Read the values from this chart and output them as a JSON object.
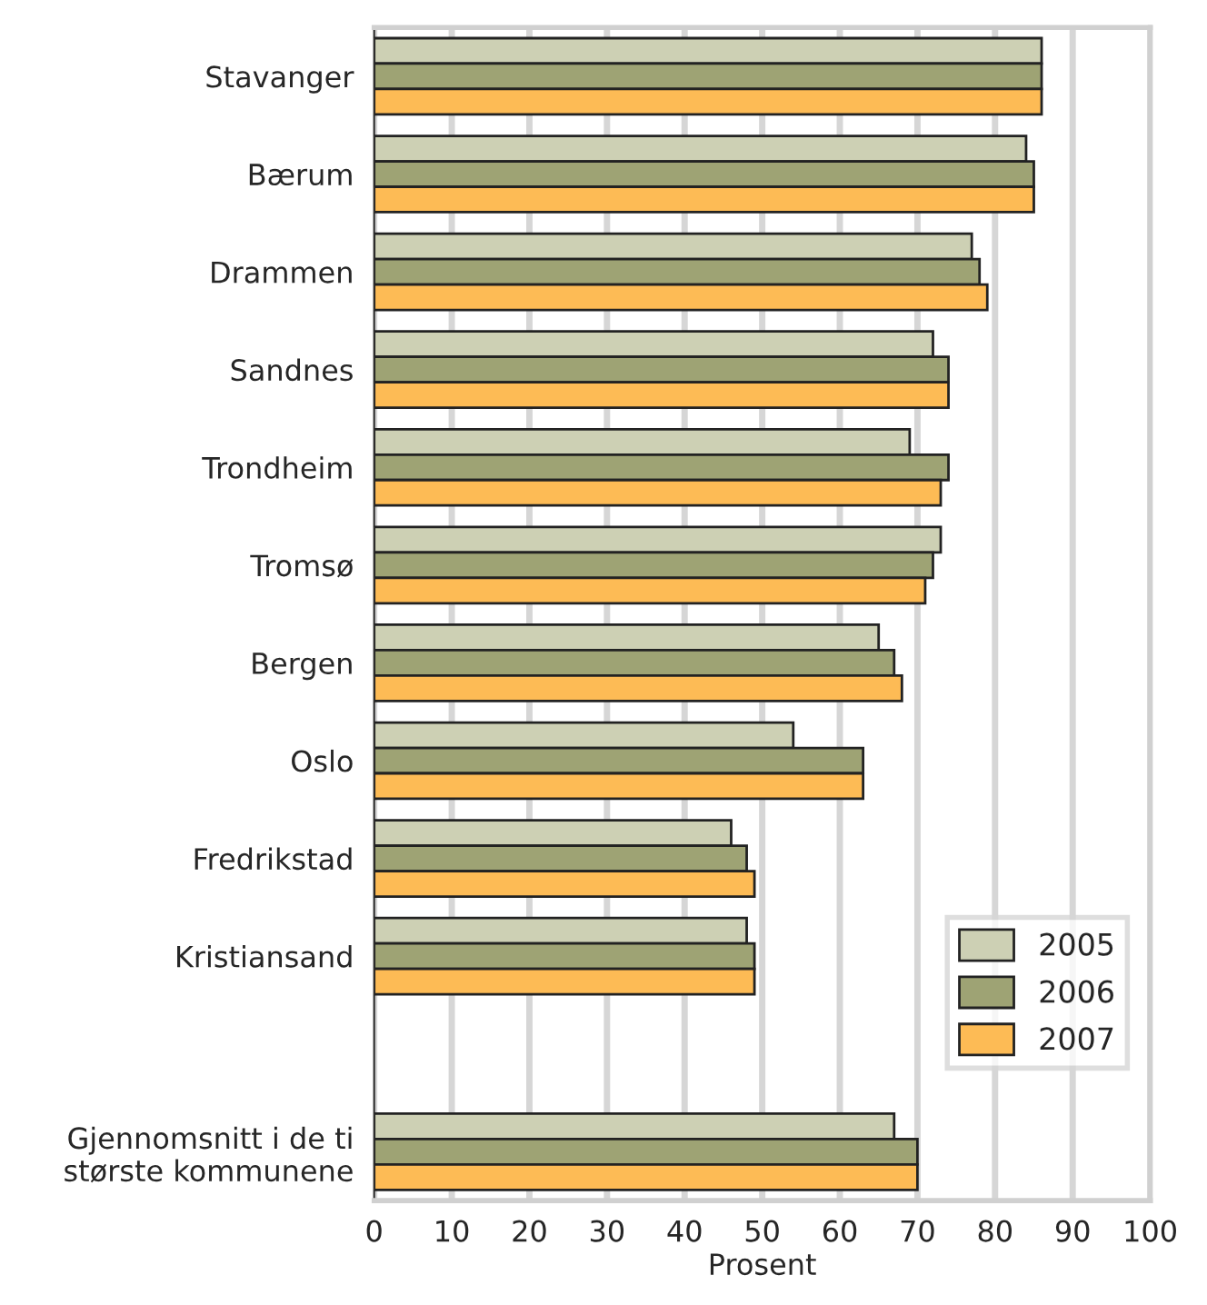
{
  "chart_data": {
    "type": "bar",
    "orientation": "horizontal",
    "xlabel": "Prosent",
    "categories": [
      "Stavanger",
      "Bærum",
      "Drammen",
      "Sandnes",
      "Trondheim",
      "Tromsø",
      "Bergen",
      "Oslo",
      "Fredrikstad",
      "Kristiansand",
      null,
      "Gjennomsnitt i de ti\nstørste kommunene"
    ],
    "series": [
      {
        "name": "2005",
        "color": "#cdd0b4",
        "values": [
          86,
          84,
          77,
          72,
          69,
          73,
          65,
          54,
          46,
          48,
          null,
          67
        ]
      },
      {
        "name": "2006",
        "color": "#9ea374",
        "values": [
          86,
          85,
          78,
          74,
          74,
          72,
          67,
          63,
          48,
          49,
          null,
          70
        ]
      },
      {
        "name": "2007",
        "color": "#fdbb55",
        "values": [
          86,
          85,
          79,
          74,
          73,
          71,
          68,
          63,
          49,
          49,
          null,
          70
        ]
      }
    ],
    "xlim": [
      0,
      100
    ],
    "xticks": [
      0,
      10,
      20,
      30,
      40,
      50,
      60,
      70,
      80,
      90,
      100
    ],
    "grid": "x",
    "legend": "bottom right"
  }
}
